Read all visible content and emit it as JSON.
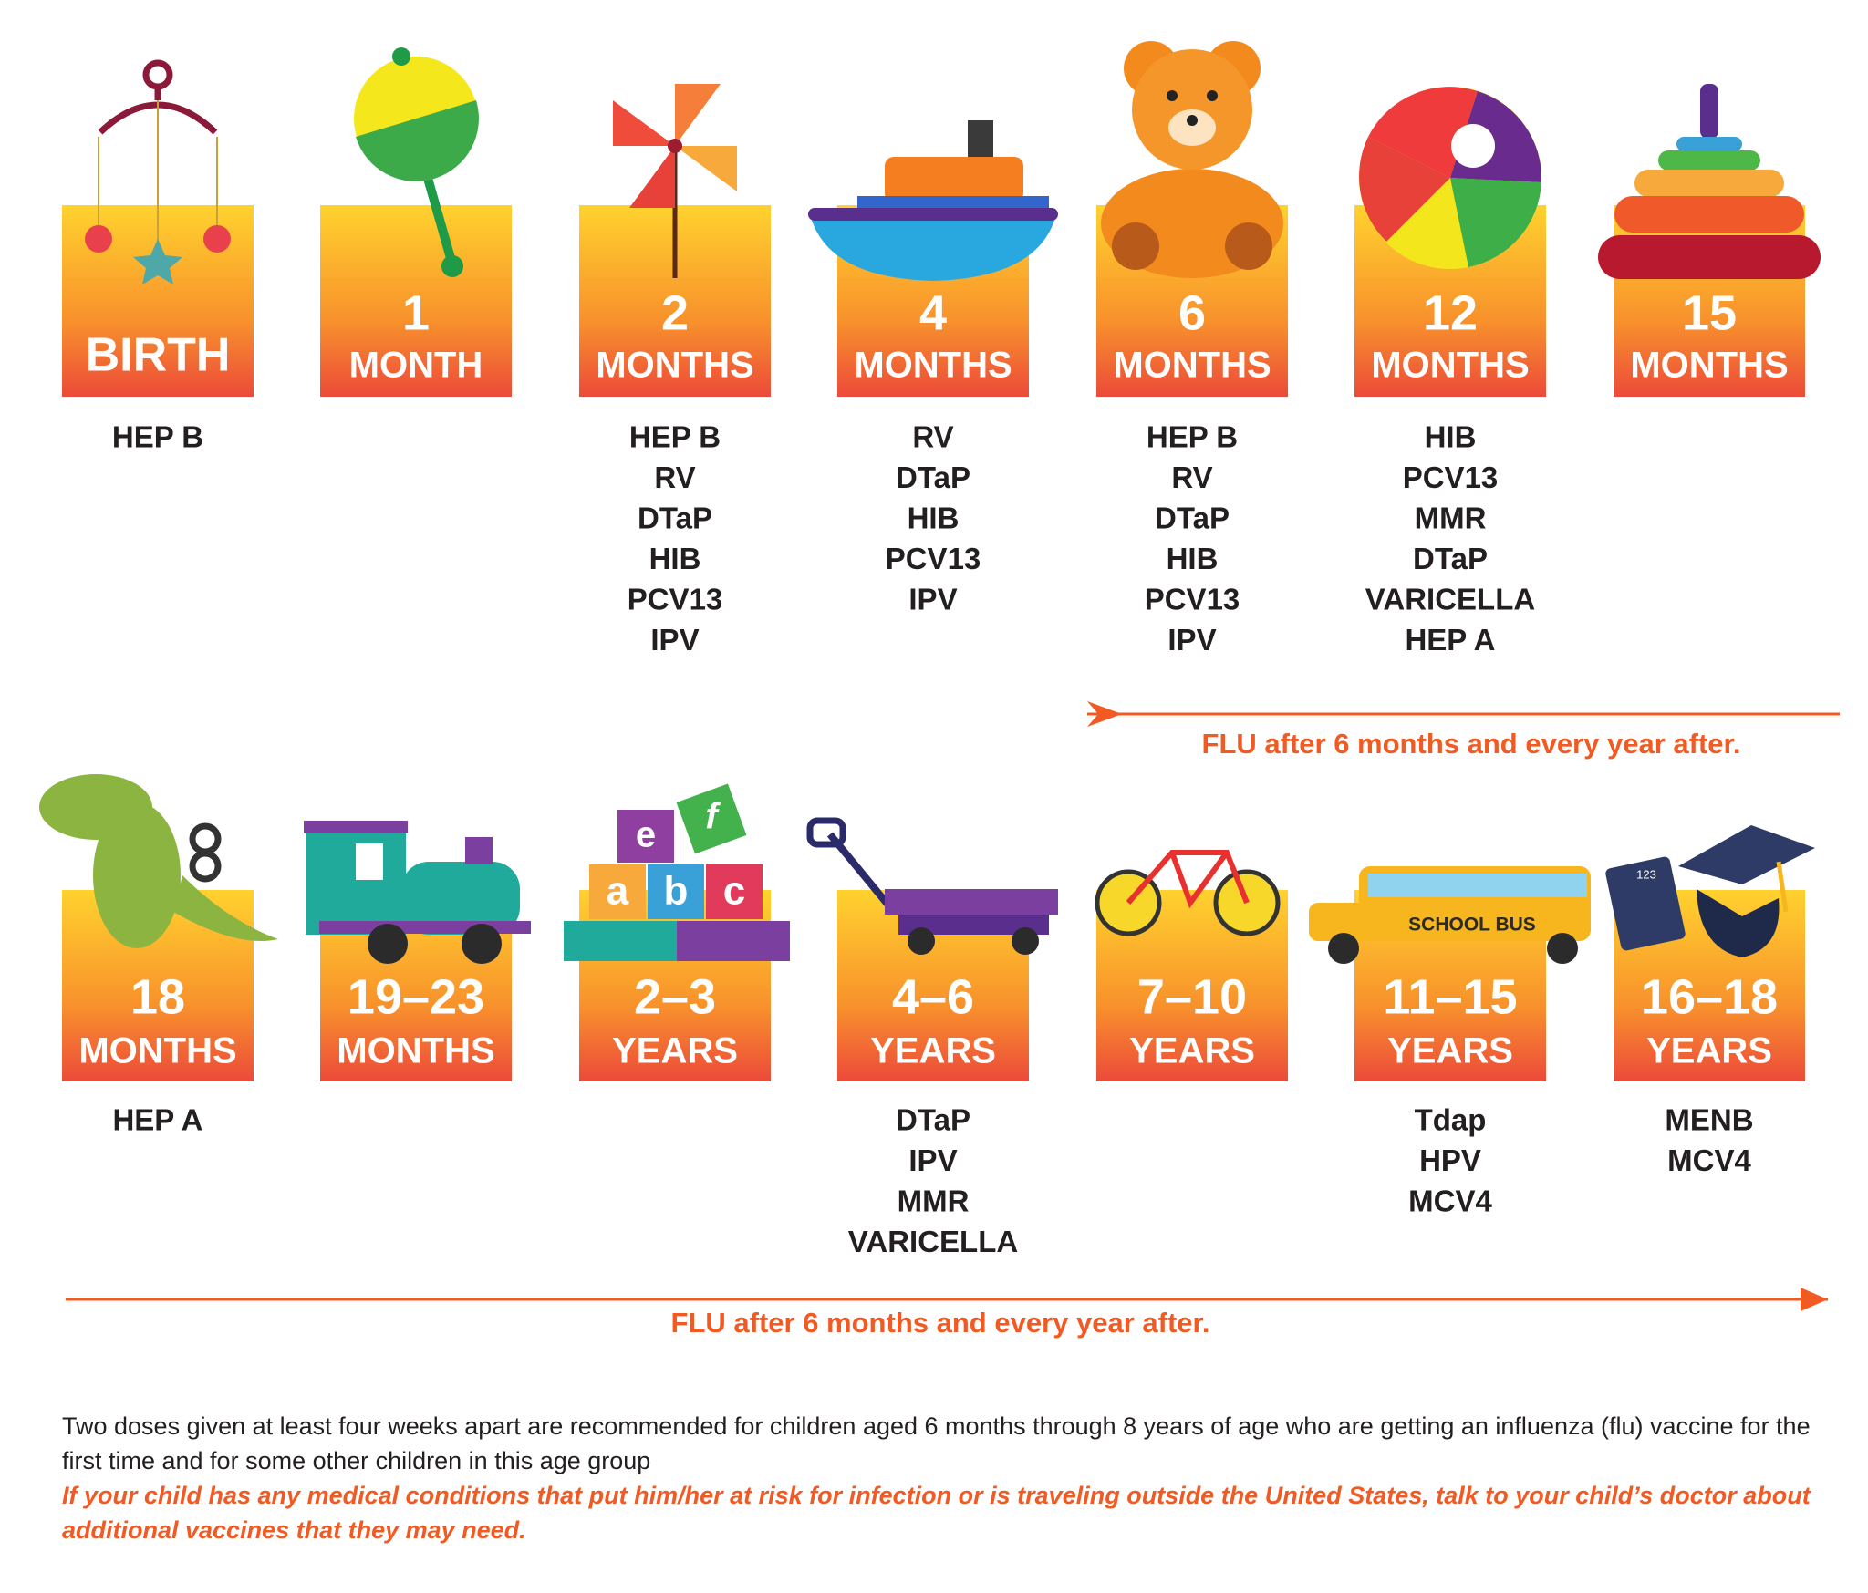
{
  "rows": [
    {
      "stages": [
        {
          "age": "BIRTH",
          "vaccines": [
            "HEP B"
          ]
        },
        {
          "age": "1",
          "unit": "MONTH",
          "vaccines": []
        },
        {
          "age": "2",
          "unit": "MONTHS",
          "vaccines": [
            "HEP B",
            "RV",
            "DTaP",
            "HIB",
            "PCV13",
            "IPV"
          ]
        },
        {
          "age": "4",
          "unit": "MONTHS",
          "vaccines": [
            "RV",
            "DTaP",
            "HIB",
            "PCV13",
            "IPV"
          ]
        },
        {
          "age": "6",
          "unit": "MONTHS",
          "vaccines": [
            "HEP B",
            "RV",
            "DTaP",
            "HIB",
            "PCV13",
            "IPV"
          ]
        },
        {
          "age": "12",
          "unit": "MONTHS",
          "vaccines": [
            "HIB",
            "PCV13",
            "MMR",
            "DTaP",
            "VARICELLA",
            "HEP A"
          ]
        },
        {
          "age": "15",
          "unit": "MONTHS",
          "vaccines": []
        }
      ],
      "flu": "FLU after 6 months and every year after."
    },
    {
      "stages": [
        {
          "age": "18",
          "unit": "MONTHS",
          "vaccines": [
            "HEP A"
          ]
        },
        {
          "age": "19–23",
          "unit": "MONTHS",
          "vaccines": []
        },
        {
          "age": "2–3",
          "unit": "YEARS",
          "vaccines": []
        },
        {
          "age": "4–6",
          "unit": "YEARS",
          "vaccines": [
            "DTaP",
            "IPV",
            "MMR",
            "VARICELLA"
          ]
        },
        {
          "age": "7–10",
          "unit": "YEARS",
          "vaccines": []
        },
        {
          "age": "11–15",
          "unit": "YEARS",
          "vaccines": [
            "Tdap",
            "HPV",
            "MCV4"
          ]
        },
        {
          "age": "16–18",
          "unit": "YEARS",
          "vaccines": [
            "MENB",
            "MCV4"
          ]
        }
      ],
      "flu": "FLU after 6 months and every year after."
    }
  ],
  "icon_labels": {
    "bus": "SCHOOL BUS",
    "blocks": [
      "e",
      "f",
      "a",
      "b",
      "c"
    ],
    "calculator": "123"
  },
  "footer": {
    "note": "Two doses given at least four weeks apart are recommended for children aged 6 months through 8 years of age who are getting an influenza (flu) vaccine for the first time and for some other children in this age group",
    "warning": "If your child has any medical conditions that put him/her at risk for infection or is traveling outside the United States, talk to your child’s doctor about additional vaccines that they may need."
  }
}
